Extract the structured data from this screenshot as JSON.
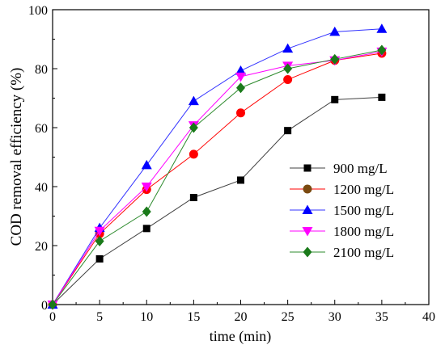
{
  "chart_data": {
    "type": "line",
    "xlabel": "time (min)",
    "ylabel": "COD removal efficiency (%)",
    "xlim": [
      0,
      40
    ],
    "ylim": [
      0,
      100
    ],
    "xticks": [
      0,
      5,
      10,
      15,
      20,
      25,
      30,
      35,
      40
    ],
    "yticks": [
      0,
      20,
      40,
      60,
      80,
      100
    ],
    "x": [
      0,
      5,
      10,
      15,
      20,
      25,
      30,
      35
    ],
    "grid": false,
    "legend_position": "bottom-right",
    "series": [
      {
        "name": "900 mg/L",
        "values": [
          0,
          15.5,
          25.8,
          36.3,
          42.2,
          59.0,
          69.5,
          70.3
        ],
        "color": "#000000",
        "line_color": "#404040",
        "marker": "square"
      },
      {
        "name": "1200 mg/L",
        "values": [
          0,
          24.0,
          39.0,
          51.0,
          65.0,
          76.3,
          82.8,
          85.2
        ],
        "color": "#ff0000",
        "line_color": "#ff0000",
        "marker": "circle"
      },
      {
        "name": "1500 mg/L",
        "values": [
          0,
          26.0,
          47.3,
          69.0,
          79.3,
          86.8,
          92.5,
          93.5
        ],
        "color": "#0000ff",
        "line_color": "#3333ff",
        "marker": "triangle-up"
      },
      {
        "name": "1800 mg/L",
        "values": [
          0,
          25.0,
          40.0,
          60.8,
          77.3,
          81.0,
          82.8,
          85.8
        ],
        "color": "#ff00ff",
        "line_color": "#ff00ff",
        "marker": "triangle-down"
      },
      {
        "name": "2100 mg/L",
        "values": [
          0,
          21.5,
          31.5,
          60.0,
          73.5,
          80.0,
          83.2,
          86.3
        ],
        "color": "#1a7a1a",
        "line_color": "#2e8b2e",
        "marker": "diamond"
      }
    ],
    "legend_marker_colors": [
      "#000000",
      "#7a4a10",
      "#0000ff",
      "#ff00ff",
      "#1a7a1a"
    ]
  }
}
